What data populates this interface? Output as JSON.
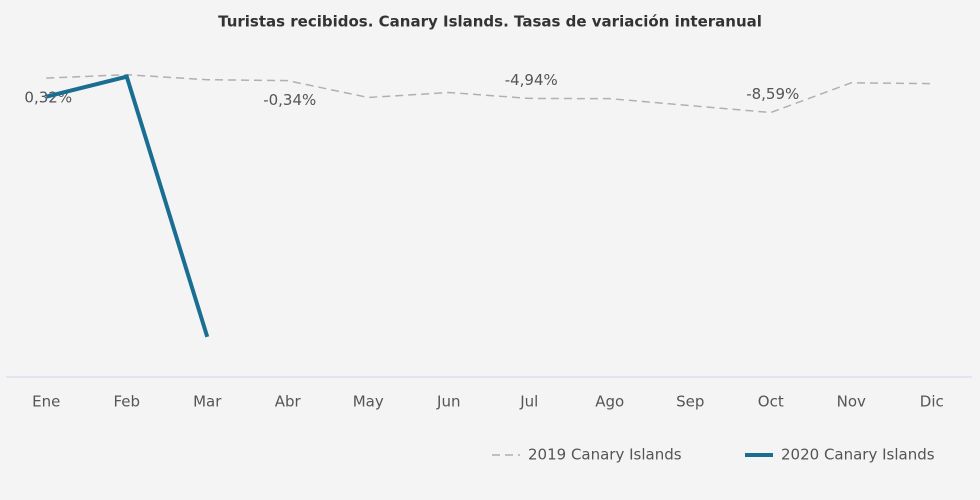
{
  "chart_data": {
    "type": "line",
    "title": "Turistas recibidos. Canary Islands. Tasas de variación interanual",
    "categories": [
      "Ene",
      "Feb",
      "Mar",
      "Abr",
      "May",
      "Jun",
      "Jul",
      "Ago",
      "Sep",
      "Oct",
      "Nov",
      "Dic"
    ],
    "ylim": [
      -77,
      5
    ],
    "series": [
      {
        "name": "2019 Canary Islands",
        "color": "#b0b0b0",
        "line_style": "dashed",
        "values": [
          0.32,
          1.2,
          -0.1,
          -0.34,
          -4.7,
          -3.4,
          -4.94,
          -5.0,
          -6.8,
          -8.59,
          -0.9,
          -1.1
        ],
        "value_labels": [
          "0,32%",
          null,
          null,
          "-0,34%",
          null,
          null,
          "-4,94%",
          null,
          null,
          "-8,59%",
          null,
          null
        ]
      },
      {
        "name": "2020 Canary Islands",
        "color": "#1a6e91",
        "line_style": "solid",
        "values": [
          -4.5,
          0.7,
          -66.6,
          null,
          null,
          null,
          null,
          null,
          null,
          null,
          null,
          null
        ]
      }
    ]
  }
}
